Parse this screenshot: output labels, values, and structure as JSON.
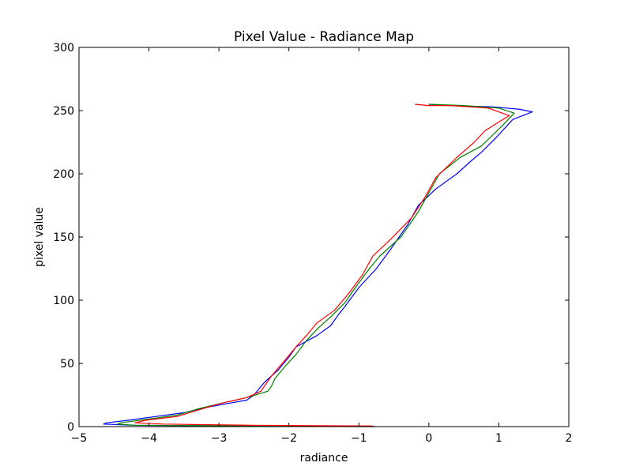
{
  "chart_data": {
    "type": "line",
    "title": "Pixel Value - Radiance Map",
    "xlabel": "radiance",
    "ylabel": "pixel value",
    "xlim": [
      -5,
      2
    ],
    "ylim": [
      0,
      300
    ],
    "xticks": [
      -5,
      -4,
      -3,
      -2,
      -1,
      0,
      1,
      2
    ],
    "yticks": [
      0,
      50,
      100,
      150,
      200,
      250,
      300
    ],
    "xtick_labels": [
      "−5",
      "−4",
      "−3",
      "−2",
      "−1",
      "0",
      "1",
      "2"
    ],
    "ytick_labels": [
      "0",
      "50",
      "100",
      "150",
      "200",
      "250",
      "300"
    ],
    "grid": false,
    "series": [
      {
        "color": "#0000ff",
        "points": [
          [
            -0.75,
            0
          ],
          [
            -2.5,
            0.5
          ],
          [
            -4.2,
            1
          ],
          [
            -4.65,
            2
          ],
          [
            -4.6,
            3
          ],
          [
            -4.3,
            5
          ],
          [
            -3.9,
            8
          ],
          [
            -3.5,
            11
          ],
          [
            -3.2,
            15
          ],
          [
            -2.9,
            18
          ],
          [
            -2.6,
            21
          ],
          [
            -2.5,
            25
          ],
          [
            -2.35,
            35
          ],
          [
            -2.15,
            45
          ],
          [
            -2.0,
            55
          ],
          [
            -1.9,
            63
          ],
          [
            -1.6,
            72
          ],
          [
            -1.4,
            80
          ],
          [
            -1.3,
            88
          ],
          [
            -1.2,
            95
          ],
          [
            -1.0,
            110
          ],
          [
            -0.75,
            125
          ],
          [
            -0.55,
            140
          ],
          [
            -0.3,
            160
          ],
          [
            -0.15,
            175
          ],
          [
            0.1,
            188
          ],
          [
            0.4,
            200
          ],
          [
            0.6,
            210
          ],
          [
            0.75,
            217
          ],
          [
            0.95,
            228
          ],
          [
            1.1,
            237
          ],
          [
            1.2,
            243
          ],
          [
            1.48,
            249
          ],
          [
            1.3,
            251
          ],
          [
            0.9,
            253
          ],
          [
            0.3,
            254
          ],
          [
            0.0,
            255
          ]
        ]
      },
      {
        "color": "#008000",
        "points": [
          [
            -0.9,
            0
          ],
          [
            -2.7,
            0.5
          ],
          [
            -4.2,
            1
          ],
          [
            -4.45,
            2
          ],
          [
            -4.4,
            3
          ],
          [
            -4.0,
            6
          ],
          [
            -3.6,
            9
          ],
          [
            -3.3,
            14
          ],
          [
            -3.0,
            18
          ],
          [
            -2.6,
            23
          ],
          [
            -2.3,
            28
          ],
          [
            -2.25,
            32
          ],
          [
            -2.2,
            38
          ],
          [
            -2.05,
            48
          ],
          [
            -1.9,
            57
          ],
          [
            -1.75,
            68
          ],
          [
            -1.6,
            77
          ],
          [
            -1.4,
            87
          ],
          [
            -1.2,
            98
          ],
          [
            -1.05,
            110
          ],
          [
            -0.85,
            125
          ],
          [
            -0.7,
            135
          ],
          [
            -0.4,
            150
          ],
          [
            -0.15,
            170
          ],
          [
            0.0,
            185
          ],
          [
            0.15,
            200
          ],
          [
            0.45,
            213
          ],
          [
            0.75,
            222
          ],
          [
            0.9,
            230
          ],
          [
            1.05,
            238
          ],
          [
            1.22,
            248
          ],
          [
            1.0,
            252
          ],
          [
            0.5,
            254
          ],
          [
            0.0,
            255
          ]
        ]
      },
      {
        "color": "#ff0000",
        "points": [
          [
            -0.8,
            0.5
          ],
          [
            -2.5,
            1
          ],
          [
            -3.8,
            2
          ],
          [
            -4.2,
            3
          ],
          [
            -4.05,
            5
          ],
          [
            -3.6,
            8
          ],
          [
            -3.3,
            13
          ],
          [
            -3.0,
            18
          ],
          [
            -2.6,
            23
          ],
          [
            -2.4,
            28
          ],
          [
            -2.25,
            40
          ],
          [
            -2.05,
            53
          ],
          [
            -1.9,
            63
          ],
          [
            -1.75,
            72
          ],
          [
            -1.6,
            82
          ],
          [
            -1.35,
            92
          ],
          [
            -1.15,
            105
          ],
          [
            -0.95,
            120
          ],
          [
            -0.8,
            135
          ],
          [
            -0.55,
            148
          ],
          [
            -0.25,
            165
          ],
          [
            -0.05,
            182
          ],
          [
            0.1,
            197
          ],
          [
            0.4,
            213
          ],
          [
            0.65,
            225
          ],
          [
            0.8,
            234
          ],
          [
            1.0,
            241
          ],
          [
            1.15,
            246
          ],
          [
            0.85,
            252
          ],
          [
            0.3,
            254
          ],
          [
            0.0,
            254
          ],
          [
            -0.2,
            255
          ]
        ]
      }
    ]
  }
}
